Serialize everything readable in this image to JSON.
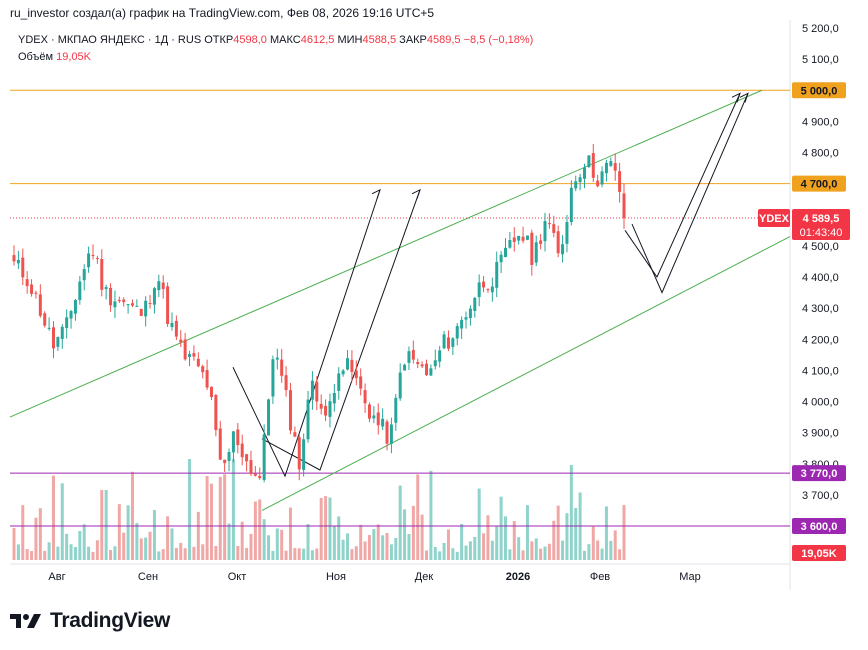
{
  "header": {
    "attribution": "ru_investor создал(а) график на TradingView.com, Фев 08, 2026 19:16 UTC+5"
  },
  "legend": {
    "symbol": "YDEX · МКПАО ЯНДЕКС · 1Д · RUS",
    "open_label": "ОТКР",
    "open": "4598,0",
    "high_label": "МАКС",
    "high": "4612,5",
    "low_label": "МИН",
    "low": "4588,5",
    "close_label": "ЗАКР",
    "close": "4589,5",
    "change": "−8,5 (−0,18%)",
    "volume_label": "Объём",
    "volume": "19,05K"
  },
  "brand": {
    "name": "TradingView"
  },
  "colors": {
    "up": "#26a69a",
    "down": "#ef5350",
    "vol_up": "#8fd3ca",
    "vol_down": "#f0a8a6",
    "orange": "#f0a21e",
    "purple": "#9c27b0",
    "green_line": "#4caf50",
    "price_tag": "#f23645"
  },
  "chart_data": {
    "type": "candlestick",
    "symbol": "YDEX",
    "ylim": [
      3600,
      5200
    ],
    "y_ticks": [
      "5 200,0",
      "5 100,0",
      "5 000,0",
      "4 900,0",
      "4 800,0",
      "4 700,0",
      "4 600,0",
      "4 500,0",
      "4 400,0",
      "4 300,0",
      "4 200,0",
      "4 100,0",
      "4 000,0",
      "3 900,0",
      "3 800,0",
      "3 700,0",
      "3 600,0"
    ],
    "x_ticks": [
      "Авг",
      "Сен",
      "Окт",
      "Ноя",
      "Дек",
      "2026",
      "Фев",
      "Мар"
    ],
    "price_tags": [
      {
        "label": "5 000,0",
        "value": 5000,
        "color": "orange"
      },
      {
        "label": "4 700,0",
        "value": 4700,
        "color": "orange"
      },
      {
        "label": "3 770,0",
        "value": 3770,
        "color": "purple"
      },
      {
        "label": "3 600,0",
        "value": 3600,
        "color": "purple"
      }
    ],
    "last": {
      "symbol": "YDEX",
      "price": "4 589,5",
      "countdown": "01:43:40",
      "value": 4589.5
    },
    "volume_tag": "19,05K",
    "horizontal_levels": [
      {
        "value": 5000,
        "color": "orange"
      },
      {
        "value": 4700,
        "color": "orange"
      },
      {
        "value": 3770,
        "color": "purple"
      },
      {
        "value": 3600,
        "color": "purple"
      }
    ],
    "close_anchors": [
      4440,
      4400,
      4300,
      4180,
      4230,
      4380,
      4500,
      4350,
      4330,
      4300,
      4280,
      4420,
      4250,
      4150,
      4120,
      4050,
      3760,
      3900,
      3800,
      3750,
      4180,
      4000,
      3800,
      4080,
      3930,
      4120,
      4100,
      4000,
      3930,
      3880,
      4150,
      4120,
      4080,
      4180,
      4220,
      4300,
      4380,
      4400,
      4480,
      4550,
      4460,
      4600,
      4450,
      4700,
      4780,
      4720,
      4760,
      4640
    ]
  }
}
